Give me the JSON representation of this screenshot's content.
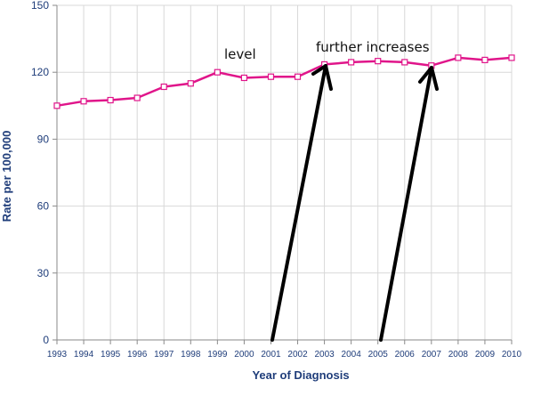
{
  "chart_data": {
    "type": "line",
    "title": "",
    "xlabel": "Year of Diagnosis",
    "ylabel": "Rate per 100,000",
    "x": [
      "1993",
      "1994",
      "1995",
      "1996",
      "1997",
      "1998",
      "1999",
      "2000",
      "2001",
      "2002",
      "2003",
      "2004",
      "2005",
      "2006",
      "2007",
      "2008",
      "2009",
      "2010"
    ],
    "series": [
      {
        "values": [
          105,
          107,
          107.5,
          108.5,
          113.5,
          115,
          120,
          117.5,
          118,
          118,
          123.5,
          124.5,
          125,
          124.5,
          123,
          126.5,
          125.5,
          126.5
        ]
      }
    ],
    "ylim": [
      0,
      150
    ],
    "yticks": [
      "0",
      "30",
      "60",
      "90",
      "120",
      "150"
    ],
    "grid": true,
    "legend": "none",
    "annotations": [
      {
        "text": "level"
      },
      {
        "text": "further increases"
      }
    ],
    "colors": {
      "line": "#e0158a",
      "grid": "#d8d8d8",
      "axis_text": "#1f3d7a",
      "arrow": "#000000"
    }
  }
}
